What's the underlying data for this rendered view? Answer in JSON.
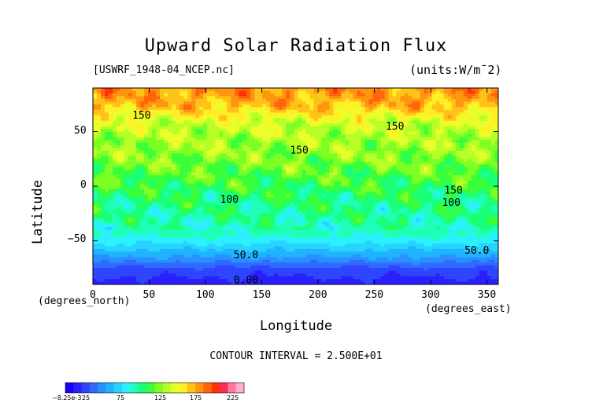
{
  "header": {
    "title": "Upward Solar Radiation Flux",
    "file_label": "[USWRF_1948-04_NCEP.nc]",
    "units_label": "(units:W/m^2)"
  },
  "footer": {
    "contour_interval": "CONTOUR INTERVAL = 2.500E+01"
  },
  "chart_data": {
    "type": "heatmap",
    "title": "Upward Solar Radiation Flux",
    "xlabel": "Longitude",
    "ylabel": "Latitude",
    "x_unit_label": "(degrees_east)",
    "y_unit_label": "(degrees_north)",
    "xlim": [
      0,
      360
    ],
    "ylim": [
      -90,
      90
    ],
    "x_ticks": [
      0,
      50,
      100,
      150,
      200,
      250,
      300,
      350
    ],
    "y_ticks": [
      -50,
      0,
      50
    ],
    "x_tick_labels": [
      "0",
      "50",
      "100",
      "150",
      "200",
      "250",
      "300",
      "350"
    ],
    "y_tick_labels": [
      "-50",
      "0",
      "50"
    ],
    "contour_interval": 25,
    "contour_labels": [
      {
        "text": "150",
        "lon": 35,
        "lat": 62
      },
      {
        "text": "150",
        "lon": 260,
        "lat": 52
      },
      {
        "text": "150",
        "lon": 175,
        "lat": 30
      },
      {
        "text": "150",
        "lon": 312,
        "lat": -7
      },
      {
        "text": "100",
        "lon": 113,
        "lat": -15
      },
      {
        "text": "100",
        "lon": 310,
        "lat": -18
      },
      {
        "text": "50.0",
        "lon": 125,
        "lat": -66
      },
      {
        "text": "50.0",
        "lon": 330,
        "lat": -62
      },
      {
        "text": "0.00",
        "lon": 125,
        "lat": -89
      }
    ],
    "colorbar": {
      "colors": [
        "#1a00ff",
        "#2a20ff",
        "#2f45ff",
        "#2f6bff",
        "#2891ff",
        "#20b4ff",
        "#26d4ff",
        "#2cf0ff",
        "#1effb8",
        "#1aff7a",
        "#38ff3a",
        "#7dff24",
        "#b8ff28",
        "#e9ff2a",
        "#ffef25",
        "#ffc219",
        "#ff9410",
        "#ff660a",
        "#ff3306",
        "#ff2a55",
        "#ff79a0",
        "#ffb0c8"
      ],
      "labels": [
        "-8.25e-3",
        "25",
        "75",
        "125",
        "175",
        "225"
      ]
    },
    "latitude_profile": [
      {
        "lat": 90,
        "value": 180
      },
      {
        "lat": 75,
        "value": 170
      },
      {
        "lat": 60,
        "value": 140
      },
      {
        "lat": 45,
        "value": 130
      },
      {
        "lat": 30,
        "value": 125
      },
      {
        "lat": 15,
        "value": 115
      },
      {
        "lat": 0,
        "value": 105
      },
      {
        "lat": -15,
        "value": 95
      },
      {
        "lat": -30,
        "value": 90
      },
      {
        "lat": -45,
        "value": 80
      },
      {
        "lat": -55,
        "value": 60
      },
      {
        "lat": -65,
        "value": 40
      },
      {
        "lat": -75,
        "value": 15
      },
      {
        "lat": -90,
        "value": 0
      }
    ]
  }
}
